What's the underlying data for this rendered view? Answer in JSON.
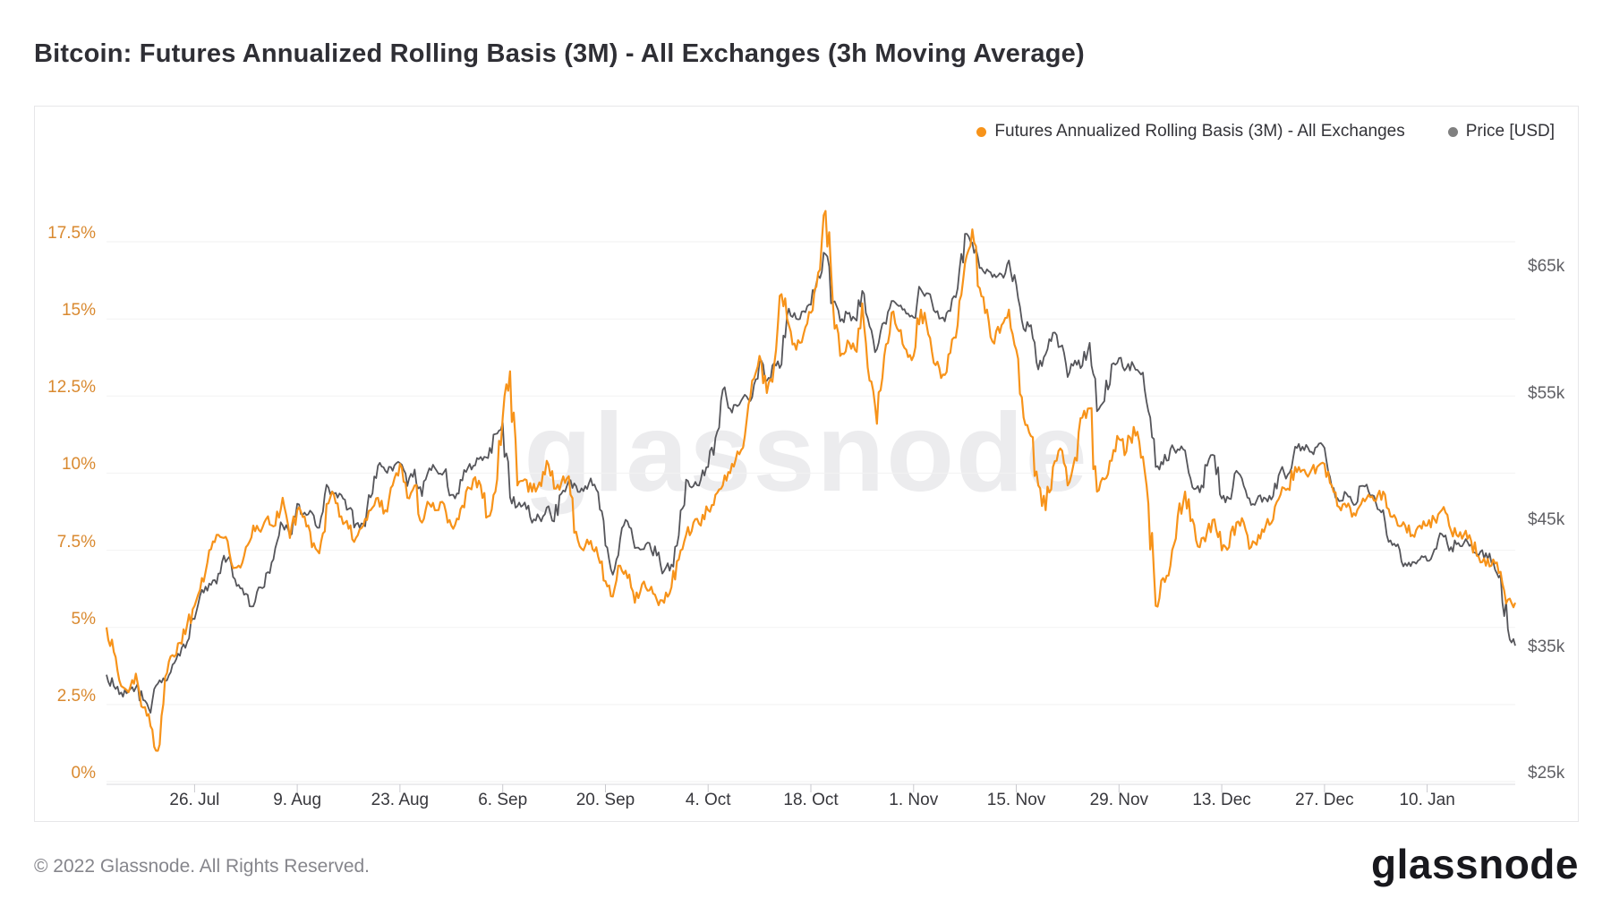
{
  "page": {
    "title": "Bitcoin: Futures Annualized Rolling Basis (3M) - All Exchanges (3h Moving Average)",
    "watermark": "glassnode",
    "footer_copyright": "© 2022 Glassnode. All Rights Reserved.",
    "brand_logo": "glassnode"
  },
  "legend": {
    "items": [
      {
        "label": "Futures Annualized Rolling Basis (3M) - All Exchanges",
        "color": "#f7931a"
      },
      {
        "label": "Price [USD]",
        "color": "#808080"
      }
    ]
  },
  "chart_data": {
    "type": "line",
    "title": "Bitcoin: Futures Annualized Rolling Basis (3M) - All Exchanges (3h Moving Average)",
    "x_start_date": "2021-07-14",
    "x_end_date": "2022-01-22",
    "x_tick_labels": [
      "26. Jul",
      "9. Aug",
      "23. Aug",
      "6. Sep",
      "20. Sep",
      "4. Oct",
      "18. Oct",
      "1. Nov",
      "15. Nov",
      "29. Nov",
      "13. Dec",
      "27. Dec",
      "10. Jan"
    ],
    "x_tick_day_index": [
      12,
      26,
      40,
      54,
      68,
      82,
      96,
      110,
      124,
      138,
      152,
      166,
      180
    ],
    "grid": "horizontal-only",
    "legend_position": "top-right",
    "left_axis": {
      "unit": "%",
      "tick_labels": [
        "17.5%",
        "15%",
        "12.5%",
        "10%",
        "7.5%",
        "5%",
        "2.5%",
        "0%"
      ],
      "tick_values": [
        17.5,
        15,
        12.5,
        10,
        7.5,
        5,
        2.5,
        0
      ],
      "range": [
        0,
        20.5
      ],
      "label_color": "#d9892f"
    },
    "right_axis": {
      "unit": "USD",
      "tick_labels": [
        "$65k",
        "$55k",
        "$45k",
        "$35k",
        "$25k"
      ],
      "tick_values": [
        65,
        55,
        45,
        35,
        25
      ],
      "range": [
        25,
        68.5
      ],
      "label_color": "#606065"
    },
    "series": [
      {
        "name": "Futures Annualized Rolling Basis (3M) - All Exchanges",
        "axis": "left",
        "color": "#f7931a",
        "unit": "%",
        "cadence": "daily",
        "values": [
          5.0,
          4.2,
          3.1,
          2.9,
          3.5,
          2.4,
          1.8,
          1.0,
          3.4,
          4.1,
          4.5,
          5.1,
          5.7,
          6.6,
          7.5,
          8.0,
          7.9,
          7.1,
          7.0,
          7.6,
          8.3,
          8.1,
          8.6,
          8.3,
          9.2,
          7.9,
          8.8,
          8.6,
          7.6,
          7.4,
          9.0,
          9.3,
          8.6,
          8.2,
          7.9,
          8.3,
          8.8,
          9.2,
          8.8,
          9.6,
          10.3,
          9.2,
          9.6,
          8.4,
          9.0,
          8.8,
          9.0,
          8.3,
          8.5,
          9.4,
          9.8,
          9.6,
          8.6,
          9.4,
          11.8,
          13.3,
          9.6,
          9.8,
          9.4,
          9.7,
          10.4,
          9.5,
          9.7,
          9.9,
          8.1,
          7.5,
          7.8,
          7.3,
          6.5,
          6.0,
          7.0,
          6.6,
          5.8,
          6.4,
          6.2,
          5.9,
          5.8,
          6.3,
          7.2,
          8.0,
          8.4,
          8.3,
          8.8,
          9.3,
          9.6,
          10.0,
          10.7,
          11.2,
          13.0,
          13.8,
          12.6,
          13.5,
          15.8,
          14.8,
          14.0,
          14.5,
          15.2,
          16.5,
          18.5,
          15.5,
          13.8,
          14.3,
          14.0,
          15.5,
          13.0,
          11.6,
          13.8,
          15.2,
          14.6,
          14.0,
          13.8,
          15.3,
          14.5,
          13.5,
          13.2,
          13.9,
          14.8,
          16.8,
          17.9,
          16.0,
          15.3,
          14.2,
          14.8,
          15.3,
          14.0,
          11.8,
          11.2,
          9.6,
          8.8,
          10.2,
          10.8,
          9.6,
          10.5,
          11.8,
          12.1,
          9.4,
          9.8,
          10.4,
          11.1,
          10.7,
          11.5,
          10.5,
          9.0,
          5.7,
          6.6,
          7.0,
          8.6,
          9.4,
          8.5,
          7.6,
          8.1,
          8.5,
          7.5,
          7.6,
          8.4,
          8.4,
          7.6,
          8.0,
          8.3,
          8.5,
          9.3,
          9.5,
          10.2,
          10.1,
          10.0,
          10.2,
          10.3,
          9.6,
          8.9,
          8.9,
          8.7,
          9.0,
          9.3,
          9.1,
          9.4,
          8.6,
          8.3,
          8.3,
          8.0,
          8.3,
          8.3,
          8.5,
          8.8,
          8.3,
          8.0,
          8.0,
          7.8,
          7.3,
          7.0,
          7.2,
          6.8,
          5.9,
          5.8
        ]
      },
      {
        "name": "Price [USD]",
        "axis": "right",
        "color": "#55555a",
        "unit": "USD (thousands)",
        "cadence": "daily",
        "values": [
          32.8,
          31.9,
          31.4,
          31.5,
          31.8,
          30.8,
          29.8,
          32.1,
          32.3,
          33.6,
          34.3,
          35.4,
          37.2,
          39.5,
          40.0,
          40.0,
          42.2,
          41.5,
          39.9,
          39.2,
          38.2,
          39.7,
          40.9,
          42.8,
          44.6,
          43.8,
          46.3,
          45.6,
          45.6,
          44.4,
          47.8,
          47.1,
          47.0,
          45.9,
          44.7,
          44.7,
          46.8,
          49.3,
          48.9,
          48.9,
          49.5,
          47.7,
          49.0,
          46.9,
          49.1,
          48.9,
          48.8,
          47.0,
          47.1,
          48.8,
          49.3,
          50.0,
          49.9,
          51.8,
          52.7,
          46.8,
          46.1,
          46.4,
          44.8,
          45.2,
          46.0,
          44.9,
          47.1,
          48.1,
          47.7,
          47.3,
          48.3,
          47.2,
          43.0,
          40.7,
          43.5,
          44.9,
          42.8,
          42.7,
          43.2,
          42.2,
          41.0,
          41.5,
          43.8,
          48.2,
          47.7,
          48.2,
          49.2,
          51.5,
          55.3,
          53.8,
          54.0,
          54.9,
          54.7,
          57.5,
          56.0,
          57.4,
          57.3,
          61.7,
          60.9,
          61.5,
          62.0,
          64.3,
          66.0,
          62.2,
          60.7,
          61.3,
          60.9,
          63.1,
          60.3,
          58.5,
          60.6,
          62.3,
          61.9,
          61.3,
          61.0,
          63.2,
          62.9,
          61.4,
          61.0,
          61.5,
          63.3,
          67.6,
          66.9,
          64.9,
          64.8,
          64.4,
          64.4,
          65.5,
          63.6,
          60.1,
          60.4,
          56.9,
          58.1,
          59.8,
          58.7,
          56.3,
          57.6,
          57.2,
          59.0,
          53.6,
          54.4,
          57.3,
          57.8,
          57.0,
          57.2,
          56.5,
          53.6,
          49.2,
          49.4,
          50.6,
          50.6,
          50.5,
          47.6,
          47.2,
          49.3,
          50.1,
          46.7,
          46.7,
          48.9,
          47.7,
          46.2,
          46.9,
          46.7,
          46.9,
          48.9,
          48.6,
          50.8,
          50.8,
          50.4,
          50.8,
          50.7,
          47.6,
          46.5,
          47.1,
          46.2,
          47.7,
          47.3,
          46.4,
          45.8,
          43.4,
          43.1,
          41.6,
          41.7,
          41.9,
          41.8,
          42.7,
          43.9,
          42.6,
          43.1,
          43.2,
          43.1,
          42.2,
          42.4,
          41.7,
          40.7,
          36.4,
          35.1
        ]
      }
    ]
  }
}
